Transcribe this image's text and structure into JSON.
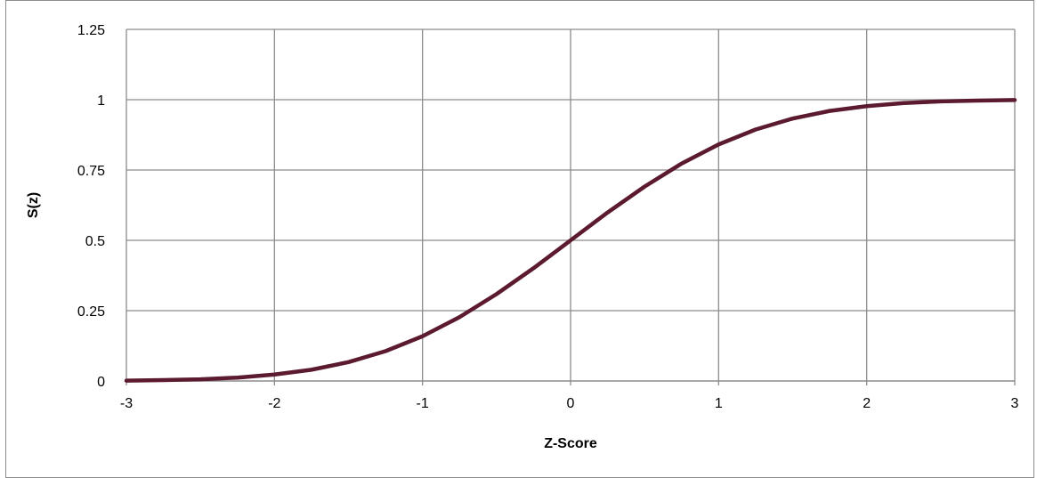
{
  "chart_data": {
    "type": "line",
    "title": "",
    "xlabel": "Z-Score",
    "ylabel": "S(z)",
    "xlim": [
      -3,
      3
    ],
    "ylim": [
      0,
      1.25
    ],
    "xticks": [
      -3,
      -2,
      -1,
      0,
      1,
      2,
      3
    ],
    "yticks": [
      0,
      0.25,
      0.5,
      0.75,
      1,
      1.25
    ],
    "xtick_labels": [
      "-3",
      "-2",
      "-1",
      "0",
      "1",
      "2",
      "3"
    ],
    "ytick_labels": [
      "0",
      "0.25",
      "0.5",
      "0.75",
      "1",
      "1.25"
    ],
    "grid": true,
    "legend": "none",
    "series": [
      {
        "color": "#5b1a2e",
        "x": [
          -3,
          -2.75,
          -2.5,
          -2.25,
          -2,
          -1.75,
          -1.5,
          -1.25,
          -1,
          -0.75,
          -0.5,
          -0.25,
          0,
          0.25,
          0.5,
          0.75,
          1,
          1.25,
          1.5,
          1.75,
          2,
          2.25,
          2.5,
          2.75,
          3
        ],
        "y": [
          0.001,
          0.003,
          0.006,
          0.012,
          0.023,
          0.04,
          0.067,
          0.106,
          0.159,
          0.227,
          0.309,
          0.401,
          0.5,
          0.599,
          0.691,
          0.773,
          0.841,
          0.894,
          0.933,
          0.96,
          0.977,
          0.988,
          0.994,
          0.997,
          0.999
        ]
      }
    ]
  }
}
